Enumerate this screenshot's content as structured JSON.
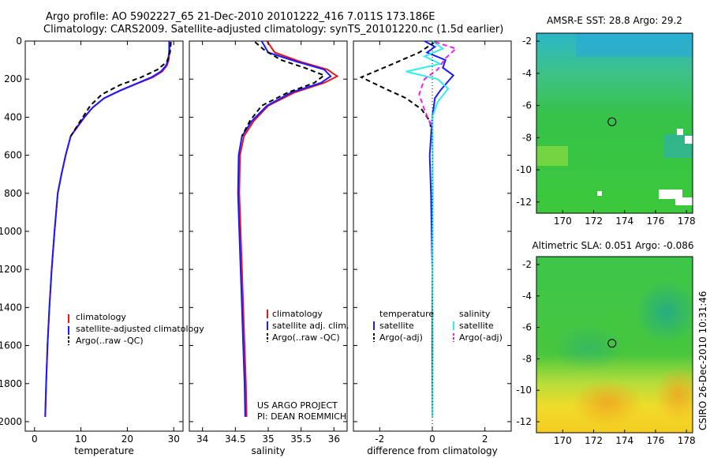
{
  "header": {
    "line1": "Argo profile: AO 5902227_65 21-Dec-2010 20101222_416 7.011S 173.186E",
    "line2": "Climatology: CARS2009. Satellite-adjusted climatology: synTS_20101220.nc (1.5d earlier)"
  },
  "colors": {
    "climatology": "#e8141e",
    "satellite": "#1a1aff",
    "argo": "#000000",
    "sal_satellite": "#33eeee",
    "sal_argo": "#ee22ee"
  },
  "credits": {
    "project": "US ARGO PROJECT",
    "pi": "PI: DEAN ROEMMICH",
    "stamp": "CSIRO 26-Dec-2010 10:31:46"
  },
  "chart_data": [
    {
      "type": "line",
      "xlabel": "temperature",
      "xlim": [
        -2,
        32
      ],
      "ylim": [
        2050,
        0
      ],
      "xticks": [
        0,
        10,
        20,
        30
      ],
      "yticks": [
        0,
        200,
        400,
        600,
        800,
        1000,
        1200,
        1400,
        1600,
        1800,
        2000
      ],
      "legend": [
        "climatology",
        "satellite-adjusted climatology",
        "Argo(..raw -QC)"
      ],
      "legend_position": "lower-left",
      "series": [
        {
          "name": "climatology",
          "color": "red",
          "style": "solid",
          "x": [
            29.2,
            29.1,
            28.9,
            28.5,
            27.5,
            25.5,
            22.5,
            18.5,
            15.0,
            12.5,
            10.8,
            9.3,
            7.8,
            6.7,
            5.8,
            5.0,
            4.3,
            3.7,
            3.2,
            2.8,
            2.5,
            2.3
          ],
          "y": [
            0,
            50,
            100,
            130,
            160,
            190,
            220,
            260,
            300,
            350,
            400,
            450,
            500,
            600,
            700,
            800,
            1000,
            1200,
            1400,
            1600,
            1800,
            1975
          ]
        },
        {
          "name": "satellite-adjusted climatology",
          "color": "blue",
          "style": "solid",
          "x": [
            29.0,
            29.0,
            28.8,
            28.3,
            27.2,
            25.2,
            22.3,
            18.4,
            15.0,
            12.5,
            10.7,
            9.2,
            7.8,
            6.7,
            5.8,
            5.0,
            4.3,
            3.7,
            3.2,
            2.8,
            2.5,
            2.3
          ],
          "y": [
            0,
            50,
            100,
            130,
            160,
            190,
            220,
            260,
            300,
            350,
            400,
            450,
            500,
            600,
            700,
            800,
            1000,
            1200,
            1400,
            1600,
            1800,
            1975
          ]
        },
        {
          "name": "Argo(..raw -QC)",
          "color": "black",
          "style": "dashed",
          "x": [
            29.4,
            29.2,
            28.5,
            26.5,
            23.0,
            18.5,
            14.5,
            12.0,
            10.4,
            9.1,
            7.8
          ],
          "y": [
            5,
            60,
            110,
            150,
            190,
            230,
            280,
            340,
            400,
            450,
            500
          ]
        }
      ]
    },
    {
      "type": "line",
      "xlabel": "salinity",
      "xlim": [
        33.8,
        36.2
      ],
      "ylim": [
        2050,
        0
      ],
      "xticks": [
        34,
        34.5,
        35,
        35.5,
        36
      ],
      "legend": [
        "climatology",
        "satellite adj. clim.",
        "Argo(..raw -QC)"
      ],
      "legend_position": "lower-left",
      "series": [
        {
          "name": "climatology",
          "color": "red",
          "style": "solid",
          "x": [
            34.98,
            35.1,
            35.5,
            35.9,
            36.05,
            35.85,
            35.4,
            35.0,
            34.78,
            34.63,
            34.57,
            34.56,
            34.58,
            34.6,
            34.62,
            34.64,
            34.66,
            34.67
          ],
          "y": [
            0,
            60,
            110,
            150,
            185,
            220,
            270,
            340,
            420,
            500,
            600,
            800,
            1000,
            1200,
            1400,
            1600,
            1800,
            1975
          ]
        },
        {
          "name": "satellite adj. clim.",
          "color": "blue",
          "style": "solid",
          "x": [
            34.9,
            35.0,
            35.45,
            35.85,
            35.95,
            35.8,
            35.35,
            34.98,
            34.75,
            34.6,
            34.55,
            34.54,
            34.56,
            34.58,
            34.6,
            34.62,
            34.64,
            34.65
          ],
          "y": [
            0,
            60,
            110,
            150,
            185,
            220,
            270,
            340,
            420,
            500,
            600,
            800,
            1000,
            1200,
            1400,
            1600,
            1800,
            1975
          ]
        },
        {
          "name": "Argo(..raw -QC)",
          "color": "black",
          "style": "dashed",
          "x": [
            34.8,
            34.95,
            35.2,
            35.55,
            35.85,
            35.7,
            35.3,
            34.9,
            34.72,
            34.6
          ],
          "y": [
            5,
            50,
            100,
            140,
            180,
            220,
            270,
            340,
            420,
            500
          ]
        }
      ]
    },
    {
      "type": "line",
      "xlabel": "difference from climatology",
      "xlim": [
        -3,
        3
      ],
      "ylim": [
        2050,
        0
      ],
      "xticks": [
        -2,
        0,
        2
      ],
      "legend_temperature": [
        "temperature",
        "satellite",
        "Argo(-adj)"
      ],
      "legend_salinity": [
        "salinity",
        "satellite",
        "Argo(-adj)"
      ],
      "series": [
        {
          "name": "satellite",
          "group": "temperature",
          "color": "blue",
          "style": "solid",
          "x": [
            -0.3,
            0.1,
            -0.2,
            0.5,
            0.4,
            0.8,
            0.55,
            0.3,
            0.1,
            0.0,
            -0.1,
            -0.05,
            0.0,
            0.0,
            0.0
          ],
          "y": [
            0,
            30,
            60,
            100,
            140,
            180,
            220,
            260,
            300,
            400,
            600,
            800,
            1200,
            1600,
            1975
          ]
        },
        {
          "name": "Argo(-adj)",
          "group": "temperature",
          "color": "black",
          "style": "dashed",
          "x": [
            0.1,
            -0.5,
            -1.5,
            -2.7,
            -1.8,
            -1.0,
            -0.4,
            -0.1,
            0.0
          ],
          "y": [
            5,
            60,
            120,
            190,
            250,
            300,
            360,
            420,
            500
          ]
        },
        {
          "name": "satellite",
          "group": "salinity",
          "color": "cyan",
          "style": "solid",
          "x": [
            0.0,
            0.4,
            -0.3,
            0.3,
            -1.0,
            0.2,
            0.6,
            0.2,
            0.0,
            0.02,
            0.0,
            0.02,
            0.0
          ],
          "y": [
            0,
            40,
            80,
            120,
            160,
            200,
            250,
            320,
            400,
            800,
            1200,
            1600,
            1975
          ]
        },
        {
          "name": "Argo(-adj)",
          "group": "salinity",
          "color": "magenta",
          "style": "dashed",
          "x": [
            0.1,
            0.9,
            0.5,
            0.2,
            -0.3,
            -0.5,
            -0.3,
            0.0
          ],
          "y": [
            5,
            40,
            90,
            150,
            200,
            280,
            360,
            460
          ]
        }
      ]
    },
    {
      "type": "heatmap",
      "title": "AMSR-E SST: 28.8 Argo: 29.2",
      "xlim": [
        168.3,
        178.4
      ],
      "ylim": [
        -12.7,
        -1.5
      ],
      "xticks": [
        170,
        172,
        174,
        176,
        178
      ],
      "yticks": [
        -2,
        -4,
        -6,
        -8,
        -10,
        -12
      ],
      "marker": {
        "lon": 173.186,
        "lat": -7.011
      }
    },
    {
      "type": "heatmap",
      "title": "Altimetric SLA: 0.051 Argo: -0.086",
      "xlim": [
        168.3,
        178.4
      ],
      "ylim": [
        -12.7,
        -1.5
      ],
      "xticks": [
        170,
        172,
        174,
        176,
        178
      ],
      "yticks": [
        -2,
        -4,
        -6,
        -8,
        -10,
        -12
      ],
      "marker": {
        "lon": 173.186,
        "lat": -7.011
      }
    }
  ]
}
